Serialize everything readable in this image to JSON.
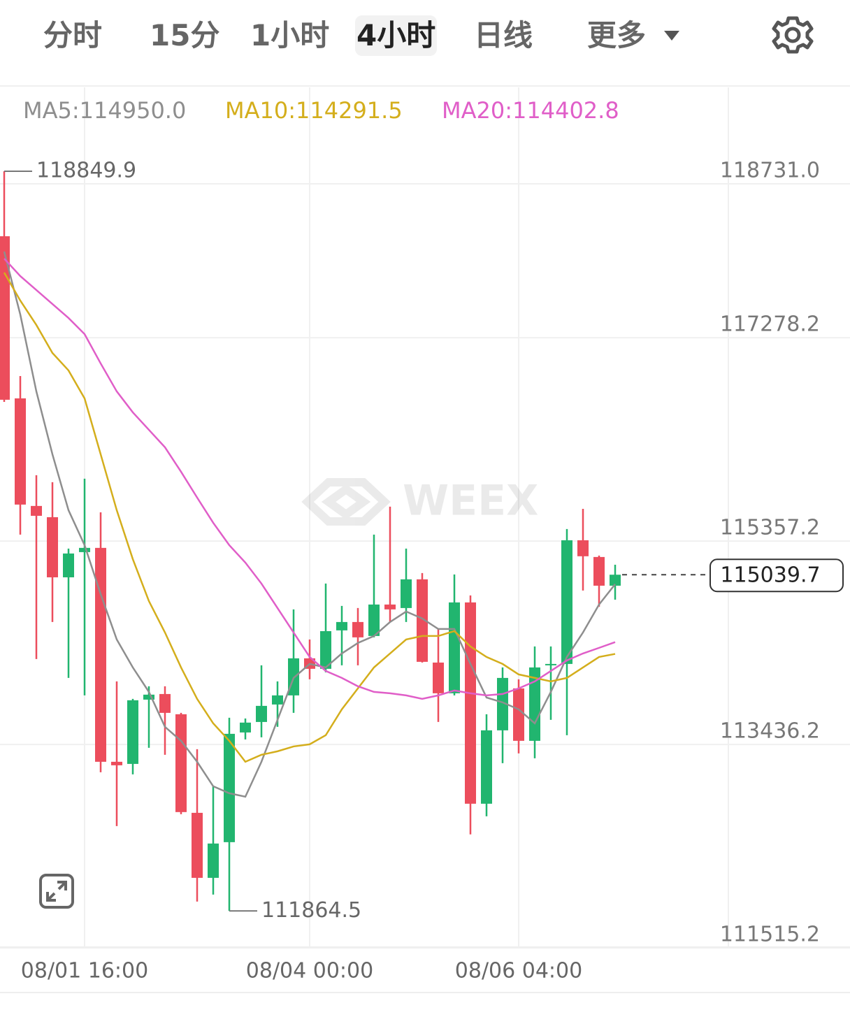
{
  "tabs": [
    "分时",
    "15分",
    "1小时",
    "4小时",
    "日线",
    "更多"
  ],
  "watermark": "WEEX",
  "chart_data": {
    "type": "candlestick",
    "categories": [
      null,
      null,
      null,
      null,
      null,
      "08/01 16:00",
      null,
      null,
      null,
      null,
      null,
      null,
      null,
      null,
      null,
      null,
      null,
      null,
      null,
      "08/04 00:00",
      null,
      null,
      null,
      null,
      null,
      null,
      null,
      null,
      null,
      null,
      null,
      null,
      "08/06 04:00",
      null,
      null,
      null,
      null,
      null,
      null
    ],
    "open": [
      118236,
      116705,
      115689,
      115583,
      115015,
      115253,
      115293,
      113273,
      113253,
      113860,
      113913,
      113722,
      112791,
      112177,
      112514,
      113550,
      113649,
      113814,
      113900,
      114250,
      114151,
      114514,
      114593,
      114461,
      114758,
      114725,
      114996,
      114210,
      113920,
      114778,
      112877,
      113570,
      113966,
      113471,
      114184,
      114197,
      115365,
      115207,
      114936
    ],
    "high": [
      118849.9,
      116916,
      115979,
      115913,
      115286,
      115946,
      115629,
      114032,
      113867,
      113986,
      113986,
      113735,
      113392,
      113042,
      113689,
      113682,
      114184,
      114032,
      114712,
      114428,
      114956,
      114745,
      114725,
      115418,
      115682,
      115286,
      115055,
      114527,
      115042,
      114844,
      113722,
      114164,
      114052,
      114362,
      114362,
      115471,
      115662,
      115220,
      115134
    ],
    "low": [
      116672,
      115418,
      114243,
      114593,
      114065,
      113900,
      113174,
      112666,
      113154,
      113405,
      113339,
      112778,
      111953,
      112019,
      111864.5,
      113484,
      113504,
      113603,
      113735,
      114052,
      114118,
      114184,
      114184,
      114448,
      114593,
      114593,
      114210,
      113649,
      113900,
      112587,
      112758,
      113260,
      113352,
      113306,
      113669,
      113524,
      114890,
      114738,
      114804
    ],
    "close": [
      116692,
      115702,
      115596,
      115015,
      115240,
      115293,
      113273,
      113240,
      113854,
      113907,
      113735,
      112798,
      112177,
      112501,
      113537,
      113643,
      113801,
      113900,
      114250,
      114151,
      114507,
      114593,
      114448,
      114758,
      114712,
      114996,
      114217,
      113920,
      114778,
      112877,
      113570,
      114065,
      113471,
      114164,
      114197,
      115365,
      115214,
      114936,
      115039.7
    ],
    "up_color": "#21b56f",
    "down_color": "#ec4d5c",
    "series": [
      {
        "name": "MA5:114950.0",
        "color": "#8e8e8e",
        "values": [
          118091,
          117497,
          116771,
          116177,
          115649,
          115319,
          114857,
          114428,
          114164,
          113933,
          113603,
          113471,
          113273,
          113042,
          112976,
          112943,
          113273,
          113669,
          114065,
          114197,
          114164,
          114296,
          114395,
          114461,
          114593,
          114692,
          114626,
          114527,
          114527,
          114197,
          113880,
          113834,
          113768,
          113636,
          113933,
          114263,
          114494,
          114758,
          114950
        ]
      },
      {
        "name": "MA10:114291.5",
        "color": "#d4ae1c",
        "values": [
          117893,
          117629,
          117398,
          117134,
          116969,
          116705,
          116177,
          115649,
          115187,
          114791,
          114494,
          114164,
          113867,
          113636,
          113471,
          113273,
          113339,
          113372,
          113418,
          113438,
          113524,
          113768,
          113966,
          114164,
          114296,
          114428,
          114461,
          114461,
          114507,
          114362,
          114263,
          114197,
          114098,
          114065,
          114032,
          114065,
          114164,
          114263,
          114291.5
        ]
      },
      {
        "name": "MA20:114402.8",
        "color": "#e05ec8",
        "values": [
          118025,
          117860,
          117728,
          117596,
          117464,
          117312,
          117035,
          116771,
          116573,
          116408,
          116243,
          116012,
          115768,
          115530,
          115319,
          115154,
          114956,
          114725,
          114494,
          114263,
          114131,
          114065,
          113986,
          113933,
          113920,
          113900,
          113867,
          113900,
          113946,
          113920,
          113900,
          113913,
          113966,
          114032,
          114131,
          114230,
          114296,
          114349,
          114402.8
        ]
      }
    ],
    "ylim": [
      111523,
      119642
    ],
    "yticks": [
      {
        "value": 118731,
        "label": "118731.0"
      },
      117278.2,
      115357.2,
      113436.2,
      111515.2
    ],
    "grid": true
  }
}
